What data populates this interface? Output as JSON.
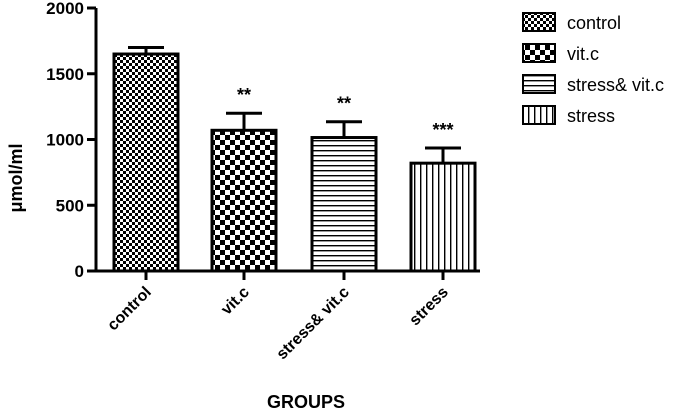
{
  "chart_data": {
    "type": "bar",
    "categories": [
      "control",
      "vit.c",
      "stress& vit.c",
      "stress"
    ],
    "values": [
      1650,
      1070,
      1015,
      820
    ],
    "errors": [
      50,
      130,
      120,
      115
    ],
    "significance": [
      "",
      "**",
      "**",
      "***"
    ],
    "patterns": [
      "checker-fine",
      "checker-coarse",
      "horizontal-lines",
      "vertical-lines"
    ],
    "ylabel": "μmol/ml",
    "xlabel": "GROUPS",
    "ylim": [
      0,
      2000
    ],
    "yticks": [
      0,
      500,
      1000,
      1500,
      2000
    ],
    "legend": {
      "position": "top-right",
      "entries": [
        "control",
        "vit.c",
        "stress& vit.c",
        "stress"
      ]
    },
    "grid": false
  }
}
